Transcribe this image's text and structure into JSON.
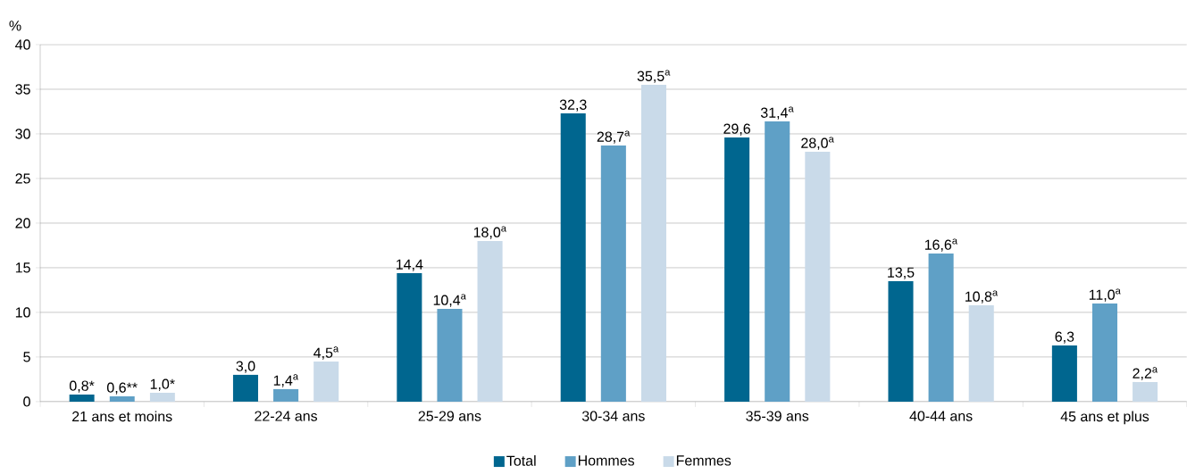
{
  "chart_data": {
    "type": "bar",
    "ylabel": "%",
    "categories": [
      "21 ans et moins",
      "22-24 ans",
      "25-29 ans",
      "30-34 ans",
      "35-39 ans",
      "40-44 ans",
      "45 ans et plus"
    ],
    "series": [
      {
        "name": "Total",
        "color": "#00668f",
        "values": [
          0.8,
          3.0,
          14.4,
          32.3,
          29.6,
          13.5,
          6.3
        ],
        "value_labels": [
          "0,8*",
          "3,0",
          "14,4",
          "32,3",
          "29,6",
          "13,5",
          "6,3"
        ]
      },
      {
        "name": "Hommes",
        "color": "#5fa0c6",
        "values": [
          0.6,
          1.4,
          10.4,
          28.7,
          31.4,
          16.6,
          11.0
        ],
        "value_labels": [
          "0,6**",
          "1,4$^{a}$",
          "10,4$^{a}$",
          "28,7$^{a}$",
          "31,4$^{a}$",
          "16,6$^{a}$",
          "11,0$^{a}$"
        ]
      },
      {
        "name": "Femmes",
        "color": "#c9dae9",
        "values": [
          1.0,
          4.5,
          18.0,
          35.5,
          28.0,
          10.8,
          2.2
        ],
        "value_labels": [
          "1,0*",
          "4,5$^{a}$",
          "18,0$^{a}$",
          "35,5$^{a}$",
          "28,0$^{a}$",
          "10,8$^{a}$",
          "2,2$^{a}$"
        ]
      }
    ],
    "ylim": [
      0,
      40
    ],
    "yticks": [
      0,
      5,
      10,
      15,
      20,
      25,
      30,
      35,
      40
    ],
    "grid": "y",
    "legend": "bottom"
  }
}
